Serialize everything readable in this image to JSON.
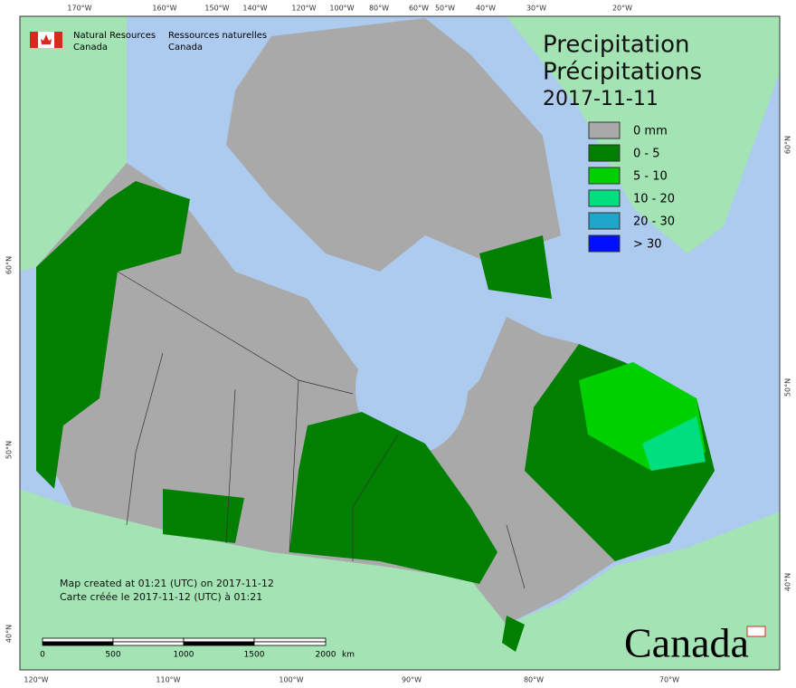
{
  "header": {
    "agency_en": "Natural Resources",
    "country_en": "Canada",
    "agency_fr": "Ressources naturelles",
    "country_fr": "Canada"
  },
  "title": {
    "en": "Precipitation",
    "fr": "Précipitations",
    "date": "2017-11-11"
  },
  "legend": [
    {
      "label": "0 mm",
      "color": "#a9a9a9"
    },
    {
      "label": "0 - 5",
      "color": "#007f00"
    },
    {
      "label": "5 - 10",
      "color": "#00d000"
    },
    {
      "label": "10 - 20",
      "color": "#00df7f"
    },
    {
      "label": "20 - 30",
      "color": "#1fa5c8"
    },
    {
      "label": "> 30",
      "color": "#0010ff"
    }
  ],
  "notes": [
    "Map created at 01:21 (UTC) on 2017-11-12",
    "Carte créée le 2017-11-12 (UTC) à 01:21"
  ],
  "scale_bar": {
    "ticks": [
      "0",
      "500",
      "1000",
      "1500",
      "2000"
    ],
    "unit": "km"
  },
  "graticule": {
    "top": [
      "170°W",
      "160°W",
      "150°W",
      "140°W",
      "120°W",
      "100°W",
      "80°W",
      "60°W",
      "50°W",
      "40°W",
      "30°W",
      "20°W"
    ],
    "bottom": [
      "120°W",
      "110°W",
      "100°W",
      "90°W",
      "80°W",
      "70°W"
    ],
    "left": [
      "60°N",
      "50°N",
      "40°N"
    ],
    "right": [
      "60°N",
      "50°N",
      "40°N"
    ]
  },
  "wordmark": "Canada"
}
